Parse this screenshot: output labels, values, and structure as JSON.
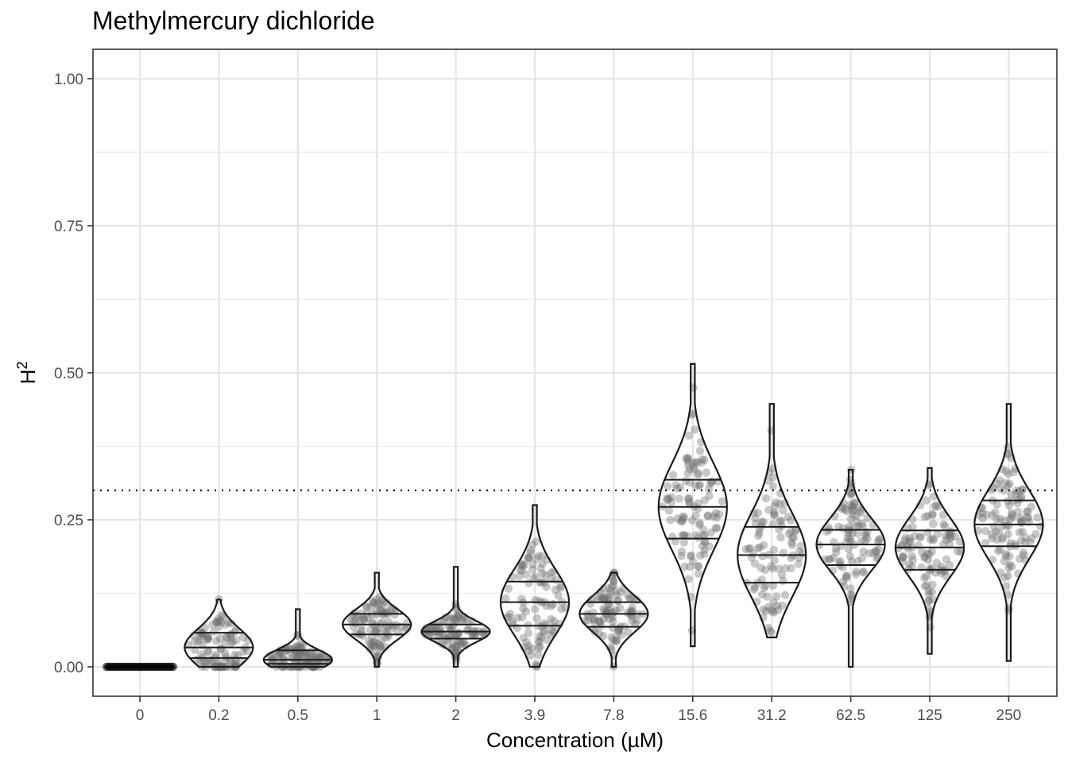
{
  "chart_data": {
    "type": "violin",
    "title": "Methylmercury dichloride",
    "xlabel": "Concentration (µM)",
    "ylabel": "H",
    "ylabel_superscript": "2",
    "categories": [
      "0",
      "0.2",
      "0.5",
      "1",
      "2",
      "3.9",
      "7.8",
      "15.6",
      "31.2",
      "62.5",
      "125",
      "250"
    ],
    "ylim": [
      -0.05,
      1.05
    ],
    "yticks": [
      0.0,
      0.25,
      0.5,
      0.75,
      1.0
    ],
    "ytick_labels": [
      "0.00",
      "0.25",
      "0.50",
      "0.75",
      "1.00"
    ],
    "reference_line": 0.3,
    "grid": true,
    "point_color": "#8c8c8c",
    "violins": [
      {
        "category": "0",
        "min": 0.0,
        "max": 0.0,
        "q25": 0.0,
        "median": 0.0,
        "q75": 0.0,
        "n": 40
      },
      {
        "category": "0.2",
        "min": 0.0,
        "max": 0.115,
        "q25": 0.015,
        "median": 0.033,
        "q75": 0.058,
        "n": 100
      },
      {
        "category": "0.5",
        "min": 0.0,
        "max": 0.098,
        "q25": 0.005,
        "median": 0.012,
        "q75": 0.028,
        "n": 110
      },
      {
        "category": "1",
        "min": 0.0,
        "max": 0.16,
        "q25": 0.055,
        "median": 0.072,
        "q75": 0.09,
        "n": 100
      },
      {
        "category": "2",
        "min": 0.0,
        "max": 0.17,
        "q25": 0.048,
        "median": 0.06,
        "q75": 0.072,
        "n": 100
      },
      {
        "category": "3.9",
        "min": 0.0,
        "max": 0.275,
        "q25": 0.07,
        "median": 0.11,
        "q75": 0.145,
        "n": 100
      },
      {
        "category": "7.8",
        "min": 0.0,
        "max": 0.16,
        "q25": 0.068,
        "median": 0.09,
        "q75": 0.11,
        "n": 100
      },
      {
        "category": "15.6",
        "min": 0.035,
        "max": 0.515,
        "q25": 0.218,
        "median": 0.272,
        "q75": 0.318,
        "n": 110
      },
      {
        "category": "31.2",
        "min": 0.05,
        "max": 0.447,
        "q25": 0.143,
        "median": 0.19,
        "q75": 0.238,
        "n": 100
      },
      {
        "category": "62.5",
        "min": 0.0,
        "max": 0.335,
        "q25": 0.173,
        "median": 0.208,
        "q75": 0.233,
        "n": 100
      },
      {
        "category": "125",
        "min": 0.022,
        "max": 0.338,
        "q25": 0.165,
        "median": 0.203,
        "q75": 0.232,
        "n": 100
      },
      {
        "category": "250",
        "min": 0.01,
        "max": 0.447,
        "q25": 0.205,
        "median": 0.242,
        "q75": 0.283,
        "n": 110
      }
    ]
  }
}
